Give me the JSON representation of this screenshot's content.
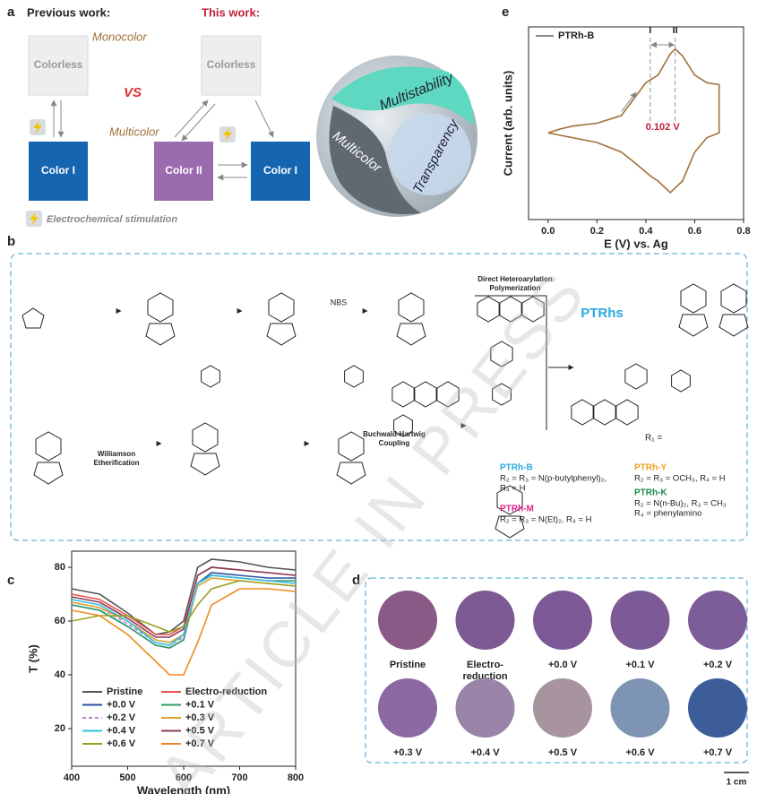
{
  "panel_a": {
    "label": "a",
    "previous_work": "Previous work:",
    "this_work": "This work:",
    "monocolor": "Monocolor",
    "vs": "VS",
    "multicolor": "Multicolor",
    "boxes": [
      "Colorless",
      "Color I",
      "Colorless",
      "Color II",
      "Color I"
    ],
    "stimulation": "Electrochemical stimulation",
    "logo": [
      "Multistability",
      "Multicolor",
      "Transparency"
    ]
  },
  "panel_b": {
    "label": "b",
    "reagents": [
      "NBS",
      "Direct Heteroarylation",
      "Polymerization",
      "Williamson",
      "Etherification",
      "Buchwald-Hartwig",
      "Coupling"
    ],
    "product": "PTRhs",
    "r1": "R₁ =",
    "variants": [
      {
        "name": "PTRh-B",
        "color": "#29a8e0",
        "lines": [
          "R₂ = R₃ = N(p-butylphenyl)₂,",
          "R₄ = H"
        ]
      },
      {
        "name": "PTRh-M",
        "color": "#e0208a",
        "lines": [
          "R₂ = R₃ = N(Et)₂, R₄ = H"
        ]
      },
      {
        "name": "PTRh-Y",
        "color": "#f0a020",
        "lines": [
          "R₂ = R₃ = OCH₃, R₄ = H"
        ]
      },
      {
        "name": "PTRh-K",
        "color": "#1a8a4a",
        "lines": [
          "R₂ = N(n-Bu)₂, R₃ = CH₃",
          "R₄ = phenylamino"
        ]
      }
    ]
  },
  "panel_d": {
    "label": "d",
    "scale": "1 cm",
    "samples": [
      {
        "label": [
          "Pristine"
        ],
        "color": "#8a5a86"
      },
      {
        "label": [
          "Electro-",
          "reduction"
        ],
        "color": "#7d5a92"
      },
      {
        "label": [
          "+0.0 V"
        ],
        "color": "#7d5896"
      },
      {
        "label": [
          "+0.1 V"
        ],
        "color": "#7c5a98"
      },
      {
        "label": [
          "+0.2 V"
        ],
        "color": "#7d5c9a"
      },
      {
        "label": [
          "+0.3 V"
        ],
        "color": "#8a6aa0"
      },
      {
        "label": [
          "+0.4 V"
        ],
        "color": "#9a84a8"
      },
      {
        "label": [
          "+0.5 V"
        ],
        "color": "#a7949e"
      },
      {
        "label": [
          "+0.6 V"
        ],
        "color": "#7d94b4"
      },
      {
        "label": [
          "+0.7 V"
        ],
        "color": "#3d5d9a"
      }
    ]
  },
  "watermark": "ARTICLE IN PRESS",
  "chart_data": [
    {
      "type": "line",
      "panel": "e",
      "xlabel": "E (V) vs. Ag",
      "ylabel": "Current (arb. units)",
      "xlim": [
        -0.08,
        0.8
      ],
      "xticks": [
        {
          "value": 0,
          "label": "0.0"
        },
        0.2,
        0.4,
        0.6,
        0.8
      ],
      "ylim": [
        -1,
        1
      ],
      "x": [
        0,
        0.05,
        0.1,
        0.2,
        0.3,
        0.35,
        0.4,
        0.45,
        0.5,
        0.52,
        0.55,
        0.6,
        0.65,
        0.7,
        0.7,
        0.65,
        0.6,
        0.55,
        0.5,
        0.45,
        0.42,
        0.35,
        0.3,
        0.2,
        0.1,
        0
      ],
      "series": [
        {
          "name": "PTRh-B",
          "color": "#a0703a",
          "values": [
            -0.1,
            -0.06,
            -0.03,
            0,
            0.08,
            0.25,
            0.42,
            0.5,
            0.72,
            0.77,
            0.7,
            0.5,
            0.42,
            0.4,
            -0.1,
            -0.15,
            -0.3,
            -0.6,
            -0.72,
            -0.6,
            -0.55,
            -0.4,
            -0.3,
            -0.2,
            -0.15,
            -0.1
          ]
        }
      ],
      "markers": [
        0.418,
        0.52
      ],
      "annotations": [
        "I",
        "II",
        "0.102 V"
      ],
      "legend": "upper left"
    },
    {
      "type": "line",
      "panel": "c",
      "xlabel": "Wavelength (nm)",
      "ylabel": "T (%)",
      "xlim": [
        400,
        800
      ],
      "xticks": [
        400,
        500,
        600,
        700,
        800
      ],
      "ylim": [
        6,
        86
      ],
      "yticks": [
        20,
        40,
        60,
        80
      ],
      "legend": "lower left",
      "x": [
        400,
        450,
        500,
        550,
        575,
        600,
        625,
        650,
        700,
        750,
        800
      ],
      "series": [
        {
          "name": "Pristine",
          "color": "#555555",
          "values": [
            72,
            70,
            63,
            55,
            56,
            60,
            80,
            83,
            82,
            80,
            79
          ]
        },
        {
          "name": "Electro-reduction",
          "color": "#e8534a",
          "values": [
            70,
            68,
            62,
            55,
            55,
            58,
            77,
            80,
            79,
            78,
            77
          ]
        },
        {
          "name": "+0.0 V",
          "color": "#2a4fa0",
          "values": [
            66,
            64,
            58,
            51,
            50,
            53,
            74,
            78,
            77,
            76,
            76
          ]
        },
        {
          "name": "+0.1 V",
          "color": "#2e9e6a",
          "values": [
            66,
            64,
            58,
            51,
            50,
            53,
            74,
            77,
            76,
            75,
            75
          ]
        },
        {
          "name": "+0.2 V",
          "color": "#c080d0",
          "dashed": true,
          "values": [
            67,
            65,
            59,
            52,
            51,
            54,
            74,
            77,
            76,
            75,
            74
          ]
        },
        {
          "name": "+0.3 V",
          "color": "#e0a030",
          "values": [
            67,
            65,
            60,
            53,
            52,
            55,
            73,
            76,
            75,
            74,
            73
          ]
        },
        {
          "name": "+0.4 V",
          "color": "#30c0e0",
          "values": [
            68,
            66,
            60,
            52,
            51,
            55,
            74,
            77,
            76,
            75,
            74
          ]
        },
        {
          "name": "+0.5 V",
          "color": "#8b3a5a",
          "values": [
            69,
            67,
            61,
            54,
            54,
            57,
            77,
            80,
            79,
            78,
            77
          ]
        },
        {
          "name": "+0.6 V",
          "color": "#9aa020",
          "values": [
            60,
            62,
            62,
            58,
            56,
            58,
            66,
            72,
            75,
            74,
            73
          ]
        },
        {
          "name": "+0.7 V",
          "color": "#f08a20",
          "values": [
            64,
            62,
            55,
            45,
            40,
            40,
            52,
            66,
            72,
            72,
            71
          ]
        }
      ]
    }
  ]
}
